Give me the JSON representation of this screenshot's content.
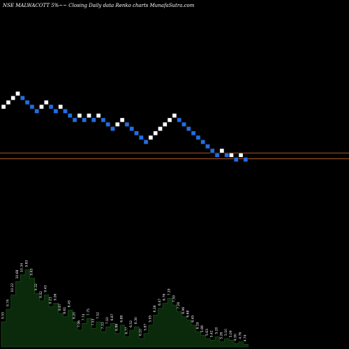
{
  "header": {
    "title": "NSE MALWACOTT 5%~~  Closing Daily data  Renko  charts MunafaSutra.com"
  },
  "chart_data": {
    "type": "renko",
    "ticker": "NSE MALWACOTT",
    "brick_size_label": "5%",
    "timeframe": "Daily",
    "basis": "Closing",
    "colors": {
      "background": "#000000",
      "up": "#ffffff",
      "down": "#1e6ee6",
      "brick_border": "#111111",
      "reference_line": "#c8641e",
      "volume_fill": "#0b2a0b",
      "volume_edge": "#1e5a1e"
    },
    "reference_lines": [
      8.4,
      8.2
    ],
    "y_scale": {
      "min": 4.0,
      "max": 11.0
    },
    "bricks": [
      {
        "price": 10.05,
        "dir": "up",
        "label": "9.55"
      },
      {
        "price": 10.2,
        "dir": "up",
        "label": "9.74"
      },
      {
        "price": 10.35,
        "dir": "up",
        "label": "10.22"
      },
      {
        "price": 10.5,
        "dir": "up",
        "label": "10.68"
      },
      {
        "price": 10.35,
        "dir": "down",
        "label": "10.34"
      },
      {
        "price": 10.2,
        "dir": "down",
        "label": "9.83"
      },
      {
        "price": 10.05,
        "dir": "down",
        "label": "9.63"
      },
      {
        "price": 9.9,
        "dir": "down",
        "label": "9.32"
      },
      {
        "price": 10.05,
        "dir": "up",
        "label": "9.42"
      },
      {
        "price": 10.2,
        "dir": "up",
        "label": "9.43"
      },
      {
        "price": 10.05,
        "dir": "down",
        "label": "9.21"
      },
      {
        "price": 9.9,
        "dir": "down",
        "label": "9.06"
      },
      {
        "price": 10.05,
        "dir": "up",
        "label": "8.87"
      },
      {
        "price": 9.9,
        "dir": "down",
        "label": "8.61"
      },
      {
        "price": 9.75,
        "dir": "down",
        "label": "8.45"
      },
      {
        "price": 9.6,
        "dir": "down",
        "label": "8.20"
      },
      {
        "price": 9.75,
        "dir": "up",
        "label": "7.96"
      },
      {
        "price": 9.6,
        "dir": "down",
        "label": "7.74"
      },
      {
        "price": 9.75,
        "dir": "up",
        "label": "7.75"
      },
      {
        "price": 9.6,
        "dir": "down",
        "label": "7.53"
      },
      {
        "price": 9.75,
        "dir": "up",
        "label": "7.52"
      },
      {
        "price": 9.6,
        "dir": "down",
        "label": "7.31"
      },
      {
        "price": 9.45,
        "dir": "down",
        "label": "7.10"
      },
      {
        "price": 9.3,
        "dir": "down",
        "label": "6.87"
      },
      {
        "price": 9.45,
        "dir": "up",
        "label": "6.86"
      },
      {
        "price": 9.6,
        "dir": "up",
        "label": "6.88"
      },
      {
        "price": 9.45,
        "dir": "down",
        "label": "6.77"
      },
      {
        "price": 9.3,
        "dir": "down",
        "label": "6.52"
      },
      {
        "price": 9.15,
        "dir": "down",
        "label": "6.30"
      },
      {
        "price": 9.0,
        "dir": "down",
        "label": "6.10"
      },
      {
        "price": 8.85,
        "dir": "down",
        "label": "5.87"
      },
      {
        "price": 9.0,
        "dir": "up",
        "label": "5.95"
      },
      {
        "price": 9.15,
        "dir": "up",
        "label": "6.18"
      },
      {
        "price": 9.3,
        "dir": "up",
        "label": "6.47"
      },
      {
        "price": 9.45,
        "dir": "up",
        "label": "6.76"
      },
      {
        "price": 9.6,
        "dir": "up",
        "label": "7.19"
      },
      {
        "price": 9.75,
        "dir": "up",
        "label": "7.59"
      },
      {
        "price": 9.6,
        "dir": "down",
        "label": "7.26"
      },
      {
        "price": 9.45,
        "dir": "down",
        "label": "6.96"
      },
      {
        "price": 9.3,
        "dir": "down",
        "label": "6.68"
      },
      {
        "price": 9.15,
        "dir": "down",
        "label": "6.45"
      },
      {
        "price": 9.0,
        "dir": "down",
        "label": "6.19"
      },
      {
        "price": 8.85,
        "dir": "down",
        "label": "5.88"
      },
      {
        "price": 8.7,
        "dir": "down",
        "label": "5.63"
      },
      {
        "price": 8.55,
        "dir": "down",
        "label": "5.42"
      },
      {
        "price": 8.4,
        "dir": "down",
        "label": "5.20"
      },
      {
        "price": 8.55,
        "dir": "up",
        "label": "5.26"
      },
      {
        "price": 8.4,
        "dir": "down",
        "label": "5.10"
      },
      {
        "price": 8.4,
        "dir": "up",
        "label": "5.09"
      },
      {
        "price": 8.25,
        "dir": "down",
        "label": "4.90"
      },
      {
        "price": 8.4,
        "dir": "up",
        "label": "4.76"
      },
      {
        "price": 8.25,
        "dir": "down",
        "label": "4.74"
      }
    ],
    "volume_profile": [
      0.3,
      0.45,
      0.62,
      0.78,
      0.86,
      0.92,
      0.82,
      0.64,
      0.55,
      0.62,
      0.48,
      0.52,
      0.4,
      0.36,
      0.44,
      0.3,
      0.2,
      0.28,
      0.34,
      0.22,
      0.3,
      0.18,
      0.24,
      0.28,
      0.16,
      0.26,
      0.12,
      0.2,
      0.24,
      0.1,
      0.16,
      0.26,
      0.38,
      0.46,
      0.52,
      0.58,
      0.5,
      0.42,
      0.36,
      0.32,
      0.26,
      0.18,
      0.14,
      0.1,
      0.08,
      0.12,
      0.06,
      0.1,
      0.08,
      0.04,
      0.06,
      0.03
    ]
  }
}
